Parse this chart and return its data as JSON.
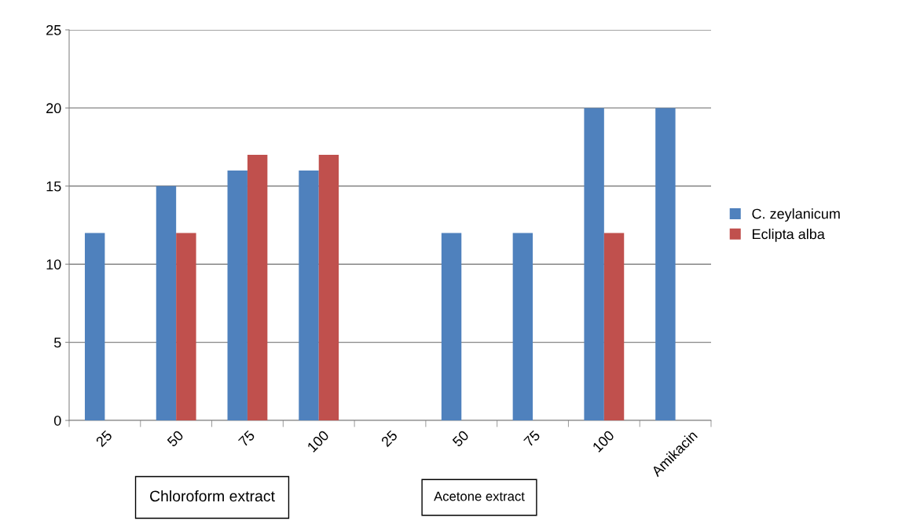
{
  "chart_data": {
    "type": "bar",
    "categories": [
      "25",
      "50",
      "75",
      "100",
      "25",
      "50",
      "75",
      "100",
      "Amikacin"
    ],
    "series": [
      {
        "name": "C. zeylanicum",
        "color": "#4f81bd",
        "values": [
          12,
          15,
          16,
          16,
          null,
          12,
          12,
          20,
          20
        ]
      },
      {
        "name": "Eclipta alba",
        "color": "#c0504d",
        "values": [
          null,
          12,
          17,
          17,
          null,
          null,
          null,
          12,
          null
        ]
      }
    ],
    "ylim": [
      0,
      25
    ],
    "yticks": [
      0,
      5,
      10,
      15,
      20,
      25
    ],
    "grid": "y",
    "legend": "right",
    "annotations": [
      "Chloroform extract",
      "Acetone extract"
    ]
  }
}
